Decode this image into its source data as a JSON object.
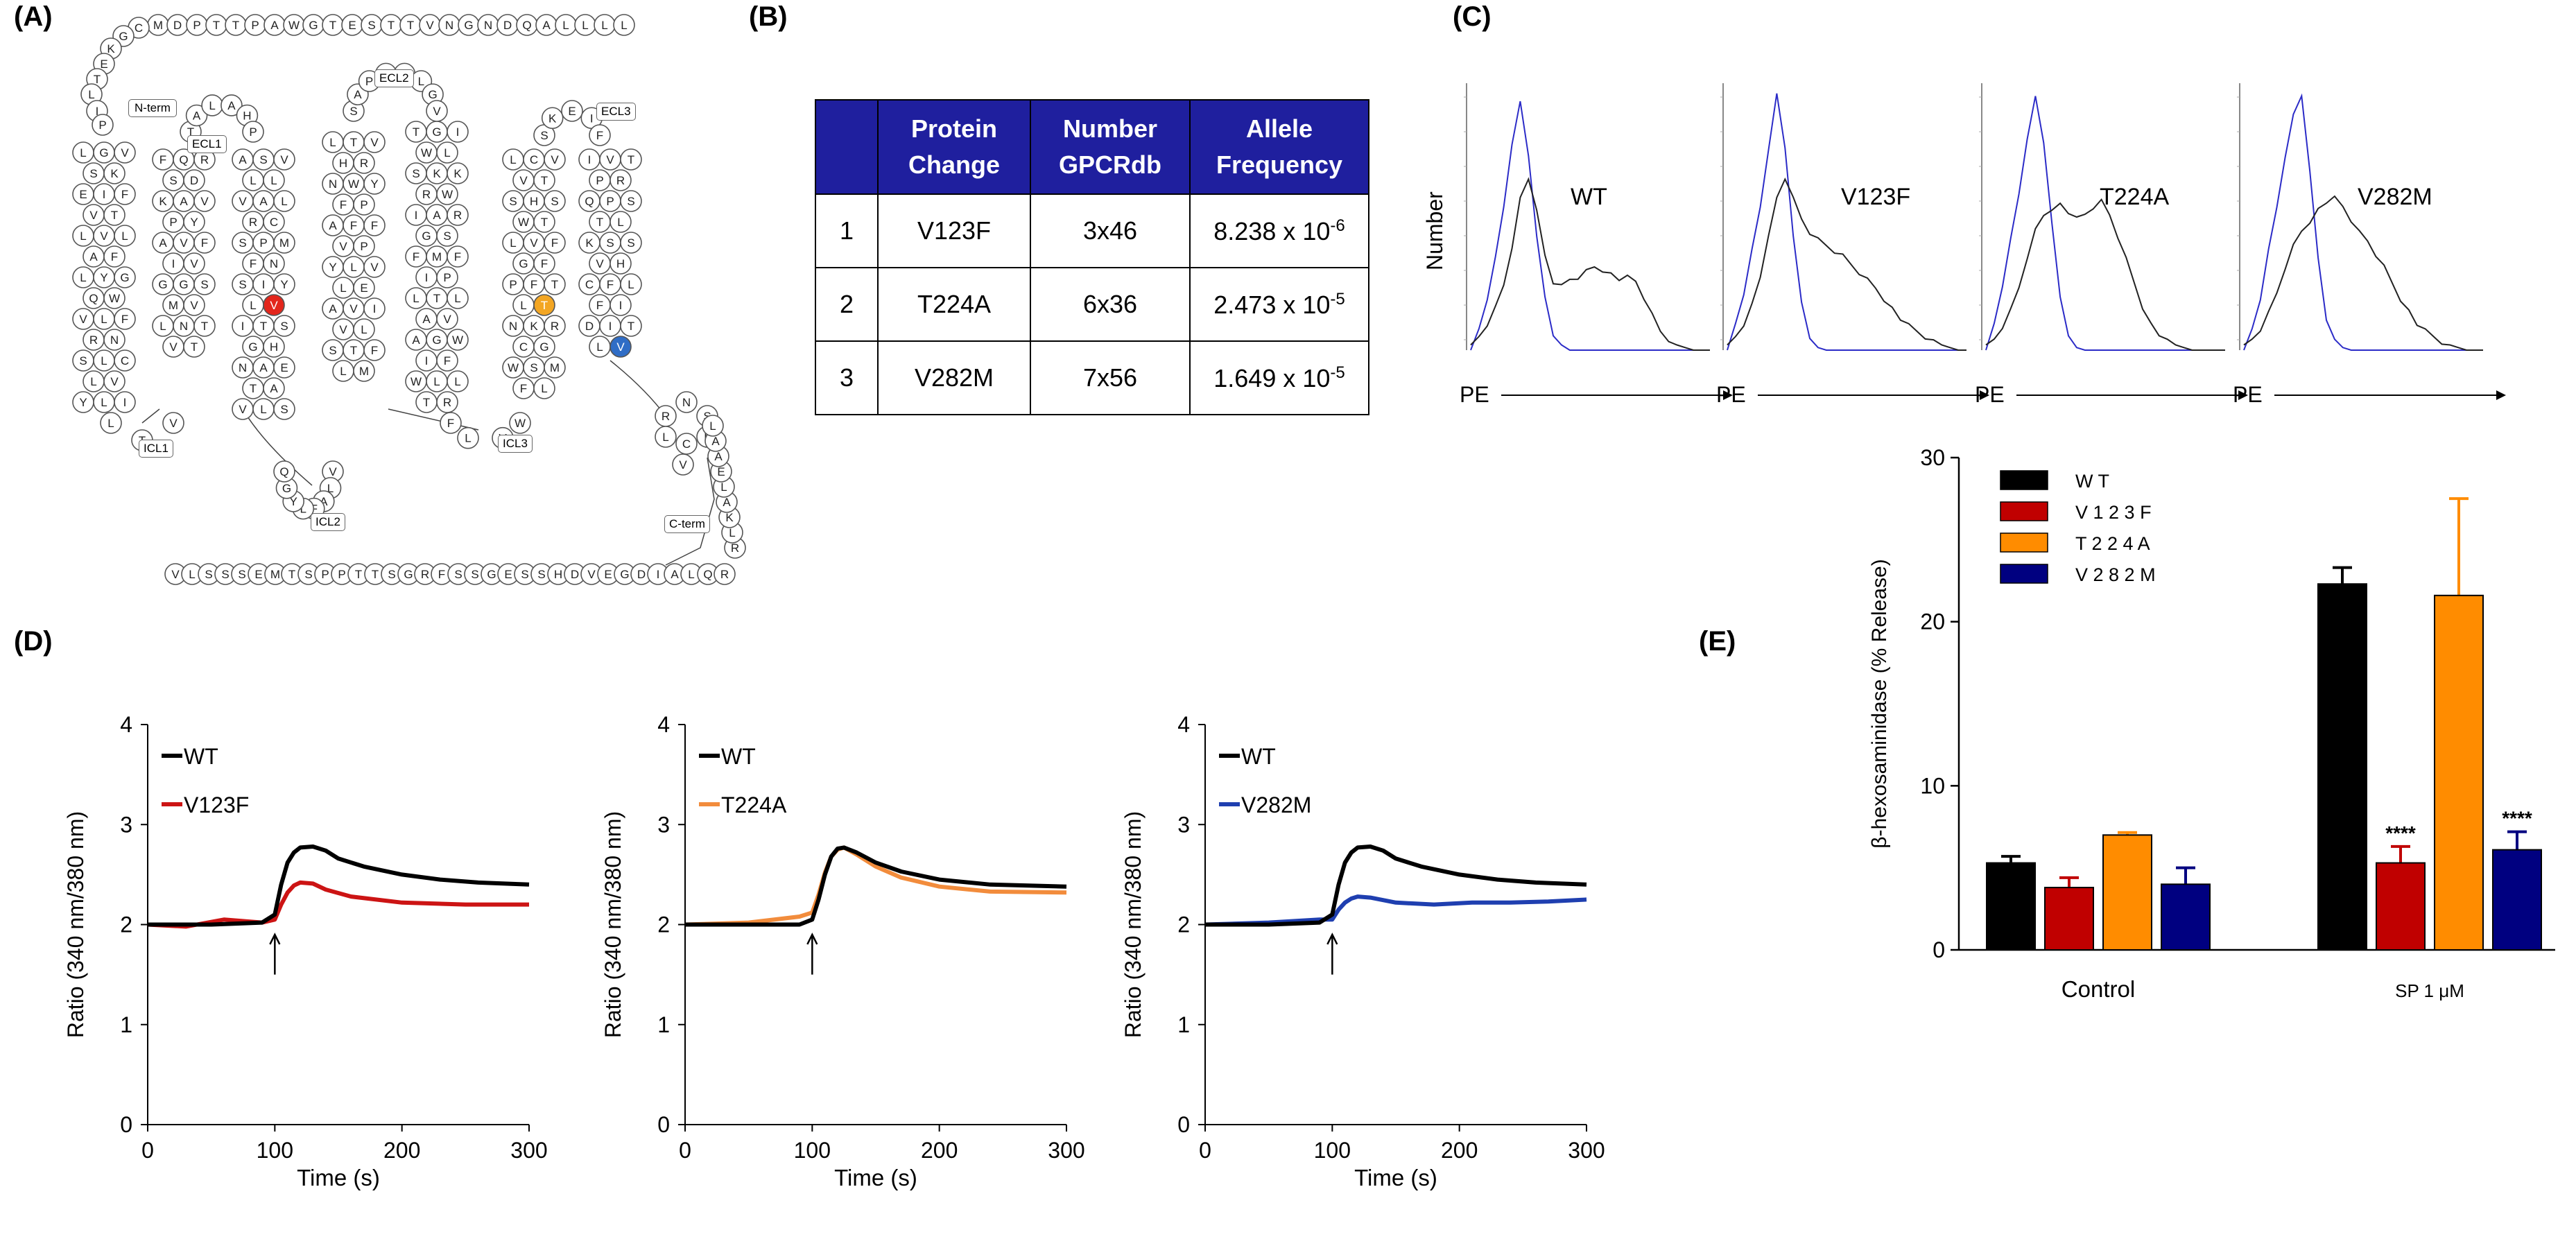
{
  "panel_labels": [
    "(A)",
    "(B)",
    "(C)",
    "(D)",
    "(E)"
  ],
  "panel_a": {
    "box_labels": [
      "N-term",
      "ECL1",
      "ECL2",
      "ECL3",
      "ICL1",
      "ICL2",
      "ICL3",
      "C-term"
    ],
    "n_term_sequence": "MDPTTPAWGTESTTVNGNDQALLLLCGKETLIPVFL",
    "c_term_sequence": "RLKALEAALRQLAIDGEVDHSSEGSSFRGSTTPPSTMESSSLV",
    "highlight_residues": [
      {
        "letter": "V",
        "color": "#e3261c"
      },
      {
        "letter": "T",
        "color": "#f3a623"
      },
      {
        "letter": "V",
        "color": "#2f6dc6"
      }
    ],
    "helix_letters": "LGVSKEIFVTLVLAFLYGQWVLFRNSLCLVYLIFQRSDKAVPYAVFIVGGSMVLNTVTASVLLVALRCSPMFNSIYLITSGHNAETAVLSLTVHRNWYFPAFFVPYLVLEAVIVLSTFLMTGIWLSKKRWIARGSFMFIPLTLAVAGWIFWLLTRLCVVTSHSWTLVFGFPFTLNKRCGWSMFLIVTPRQPSTLKSSVHCFLFIDITLTALAHPSAPVL"
  },
  "panel_b": {
    "headers": [
      "",
      "Protein Change",
      "Number GPCRdb",
      "Allele Frequency"
    ],
    "rows": [
      {
        "index": "1",
        "change": "V123F",
        "number": "3x46",
        "freq_base": "8.238 x 10",
        "freq_exp": "-6"
      },
      {
        "index": "2",
        "change": "T224A",
        "number": "6x36",
        "freq_base": "2.473 x 10",
        "freq_exp": "-5"
      },
      {
        "index": "3",
        "change": "V282M",
        "number": "7x56",
        "freq_base": "1.649 x 10",
        "freq_exp": "-5"
      }
    ]
  },
  "panel_c": {
    "y_label": "Number",
    "x_label": "PE",
    "colors": {
      "control": "#2b2bc7",
      "stained": "#222222"
    },
    "panels": [
      {
        "label": "WT",
        "control": [
          0,
          0.08,
          0.2,
          0.35,
          0.55,
          0.8,
          0.95,
          0.75,
          0.45,
          0.2,
          0.06,
          0.02,
          0,
          0,
          0,
          0,
          0,
          0,
          0,
          0,
          0,
          0,
          0,
          0,
          0,
          0,
          0,
          0,
          0,
          0
        ],
        "stained": [
          0.02,
          0.05,
          0.1,
          0.16,
          0.25,
          0.4,
          0.58,
          0.66,
          0.55,
          0.36,
          0.26,
          0.24,
          0.27,
          0.28,
          0.3,
          0.32,
          0.31,
          0.29,
          0.27,
          0.3,
          0.26,
          0.2,
          0.13,
          0.07,
          0.04,
          0.02,
          0.01,
          0,
          0,
          0
        ]
      },
      {
        "label": "V123F",
        "control": [
          0,
          0.1,
          0.22,
          0.38,
          0.55,
          0.78,
          0.98,
          0.78,
          0.45,
          0.18,
          0.05,
          0.01,
          0,
          0,
          0,
          0,
          0,
          0,
          0,
          0,
          0,
          0,
          0,
          0,
          0,
          0,
          0,
          0,
          0,
          0
        ],
        "stained": [
          0.02,
          0.05,
          0.1,
          0.17,
          0.28,
          0.45,
          0.58,
          0.66,
          0.6,
          0.5,
          0.45,
          0.42,
          0.4,
          0.38,
          0.36,
          0.33,
          0.3,
          0.27,
          0.24,
          0.2,
          0.16,
          0.12,
          0.09,
          0.07,
          0.05,
          0.03,
          0.02,
          0.01,
          0,
          0
        ]
      },
      {
        "label": "T224A",
        "control": [
          0,
          0.1,
          0.25,
          0.42,
          0.6,
          0.82,
          0.97,
          0.8,
          0.5,
          0.2,
          0.06,
          0.01,
          0,
          0,
          0,
          0,
          0,
          0,
          0,
          0,
          0,
          0,
          0,
          0,
          0,
          0,
          0,
          0,
          0,
          0
        ],
        "stained": [
          0.02,
          0.04,
          0.09,
          0.15,
          0.24,
          0.36,
          0.46,
          0.52,
          0.55,
          0.56,
          0.53,
          0.5,
          0.52,
          0.55,
          0.57,
          0.52,
          0.44,
          0.35,
          0.26,
          0.17,
          0.1,
          0.06,
          0.03,
          0.02,
          0.01,
          0,
          0,
          0,
          0,
          0
        ]
      },
      {
        "label": "V282M",
        "control": [
          0,
          0.08,
          0.2,
          0.38,
          0.55,
          0.75,
          0.9,
          0.98,
          0.7,
          0.35,
          0.12,
          0.03,
          0.01,
          0,
          0,
          0,
          0,
          0,
          0,
          0,
          0,
          0,
          0,
          0,
          0,
          0,
          0,
          0,
          0,
          0
        ],
        "stained": [
          0.02,
          0.04,
          0.08,
          0.14,
          0.22,
          0.32,
          0.4,
          0.46,
          0.5,
          0.54,
          0.57,
          0.58,
          0.55,
          0.5,
          0.45,
          0.42,
          0.37,
          0.32,
          0.26,
          0.2,
          0.15,
          0.1,
          0.07,
          0.05,
          0.03,
          0.02,
          0.01,
          0,
          0,
          0
        ]
      }
    ]
  },
  "chart_data": [
    {
      "type": "line",
      "panel": "D",
      "title": "",
      "xlabel": "Time (s)",
      "ylabel": "Ratio (340 nm/380 nm)",
      "xlim": [
        0,
        300
      ],
      "ylim": [
        0,
        4
      ],
      "x_ticks": [
        "0",
        "100",
        "200",
        "300"
      ],
      "y_ticks": [
        "0",
        "1",
        "2",
        "3",
        "4"
      ],
      "stimulus_time": 100,
      "legend": "top-left",
      "series": [
        {
          "name": "WT",
          "color": "#000000",
          "x": [
            0,
            50,
            90,
            100,
            105,
            110,
            115,
            120,
            130,
            140,
            150,
            170,
            200,
            230,
            260,
            300
          ],
          "y": [
            2.0,
            2.0,
            2.02,
            2.1,
            2.4,
            2.62,
            2.72,
            2.77,
            2.78,
            2.74,
            2.66,
            2.58,
            2.5,
            2.45,
            2.42,
            2.4
          ]
        },
        {
          "name": "V123F",
          "color": "#cc1414",
          "x": [
            0,
            30,
            60,
            90,
            100,
            105,
            110,
            115,
            120,
            130,
            140,
            160,
            200,
            250,
            300
          ],
          "y": [
            2.0,
            1.98,
            2.05,
            2.02,
            2.05,
            2.2,
            2.32,
            2.39,
            2.42,
            2.41,
            2.35,
            2.28,
            2.22,
            2.2,
            2.2
          ]
        }
      ]
    },
    {
      "type": "line",
      "panel": "D",
      "title": "",
      "xlabel": "Time (s)",
      "ylabel": "Ratio (340 nm/380 nm)",
      "xlim": [
        0,
        300
      ],
      "ylim": [
        0,
        4
      ],
      "x_ticks": [
        "0",
        "100",
        "200",
        "300"
      ],
      "y_ticks": [
        "0",
        "1",
        "2",
        "3",
        "4"
      ],
      "stimulus_time": 100,
      "legend": "top-left",
      "series": [
        {
          "name": "WT",
          "color": "#000000",
          "x": [
            0,
            50,
            90,
            100,
            105,
            110,
            115,
            120,
            125,
            135,
            150,
            170,
            200,
            240,
            300
          ],
          "y": [
            2.0,
            2.0,
            2.0,
            2.05,
            2.25,
            2.5,
            2.68,
            2.76,
            2.77,
            2.72,
            2.62,
            2.53,
            2.45,
            2.4,
            2.38
          ]
        },
        {
          "name": "T224A",
          "color": "#f28c3c",
          "x": [
            0,
            50,
            90,
            100,
            105,
            110,
            115,
            120,
            125,
            135,
            150,
            170,
            200,
            240,
            300
          ],
          "y": [
            2.0,
            2.02,
            2.08,
            2.12,
            2.3,
            2.52,
            2.68,
            2.75,
            2.77,
            2.7,
            2.58,
            2.47,
            2.38,
            2.33,
            2.32
          ]
        }
      ]
    },
    {
      "type": "line",
      "panel": "D",
      "title": "",
      "xlabel": "Time (s)",
      "ylabel": "Ratio (340 nm/380 nm)",
      "xlim": [
        0,
        300
      ],
      "ylim": [
        0,
        4
      ],
      "x_ticks": [
        "0",
        "100",
        "200",
        "300"
      ],
      "y_ticks": [
        "0",
        "1",
        "2",
        "3",
        "4"
      ],
      "stimulus_time": 100,
      "legend": "top-left",
      "series": [
        {
          "name": "WT",
          "color": "#000000",
          "x": [
            0,
            50,
            90,
            100,
            105,
            110,
            115,
            120,
            130,
            140,
            150,
            170,
            200,
            230,
            260,
            300
          ],
          "y": [
            2.0,
            2.0,
            2.02,
            2.1,
            2.4,
            2.62,
            2.72,
            2.77,
            2.78,
            2.74,
            2.66,
            2.58,
            2.5,
            2.45,
            2.42,
            2.4
          ]
        },
        {
          "name": "V282M",
          "color": "#1f3fb0",
          "x": [
            0,
            50,
            90,
            100,
            105,
            110,
            115,
            120,
            130,
            150,
            180,
            210,
            240,
            270,
            300
          ],
          "y": [
            2.0,
            2.02,
            2.05,
            2.05,
            2.15,
            2.22,
            2.26,
            2.28,
            2.27,
            2.22,
            2.2,
            2.22,
            2.22,
            2.23,
            2.25
          ]
        }
      ]
    },
    {
      "type": "bar",
      "panel": "E",
      "title": "",
      "xlabel": "",
      "ylabel": "β-hexosaminidase (% Release)",
      "ylim": [
        0,
        30
      ],
      "y_ticks": [
        "0",
        "10",
        "20",
        "30"
      ],
      "categories": [
        "Control",
        "SP 1 μM"
      ],
      "legend": "top-left",
      "series": [
        {
          "name": "W T",
          "color": "#000000",
          "values": [
            5.3,
            22.3
          ],
          "errors": [
            0.4,
            1.0
          ],
          "marks": [
            "",
            ""
          ]
        },
        {
          "name": "V 1 2 3 F",
          "color": "#c00000",
          "values": [
            3.8,
            5.3
          ],
          "errors": [
            0.6,
            1.0
          ],
          "marks": [
            "",
            "****"
          ]
        },
        {
          "name": "T 2 2 4 A",
          "color": "#ff8c00",
          "values": [
            7.0,
            21.6
          ],
          "errors": [
            0.15,
            5.9
          ],
          "marks": [
            "",
            ""
          ]
        },
        {
          "name": "V 2 8 2 M",
          "color": "#000080",
          "values": [
            4.0,
            6.1
          ],
          "errors": [
            1.0,
            1.1
          ],
          "marks": [
            "",
            "****"
          ]
        }
      ]
    }
  ]
}
